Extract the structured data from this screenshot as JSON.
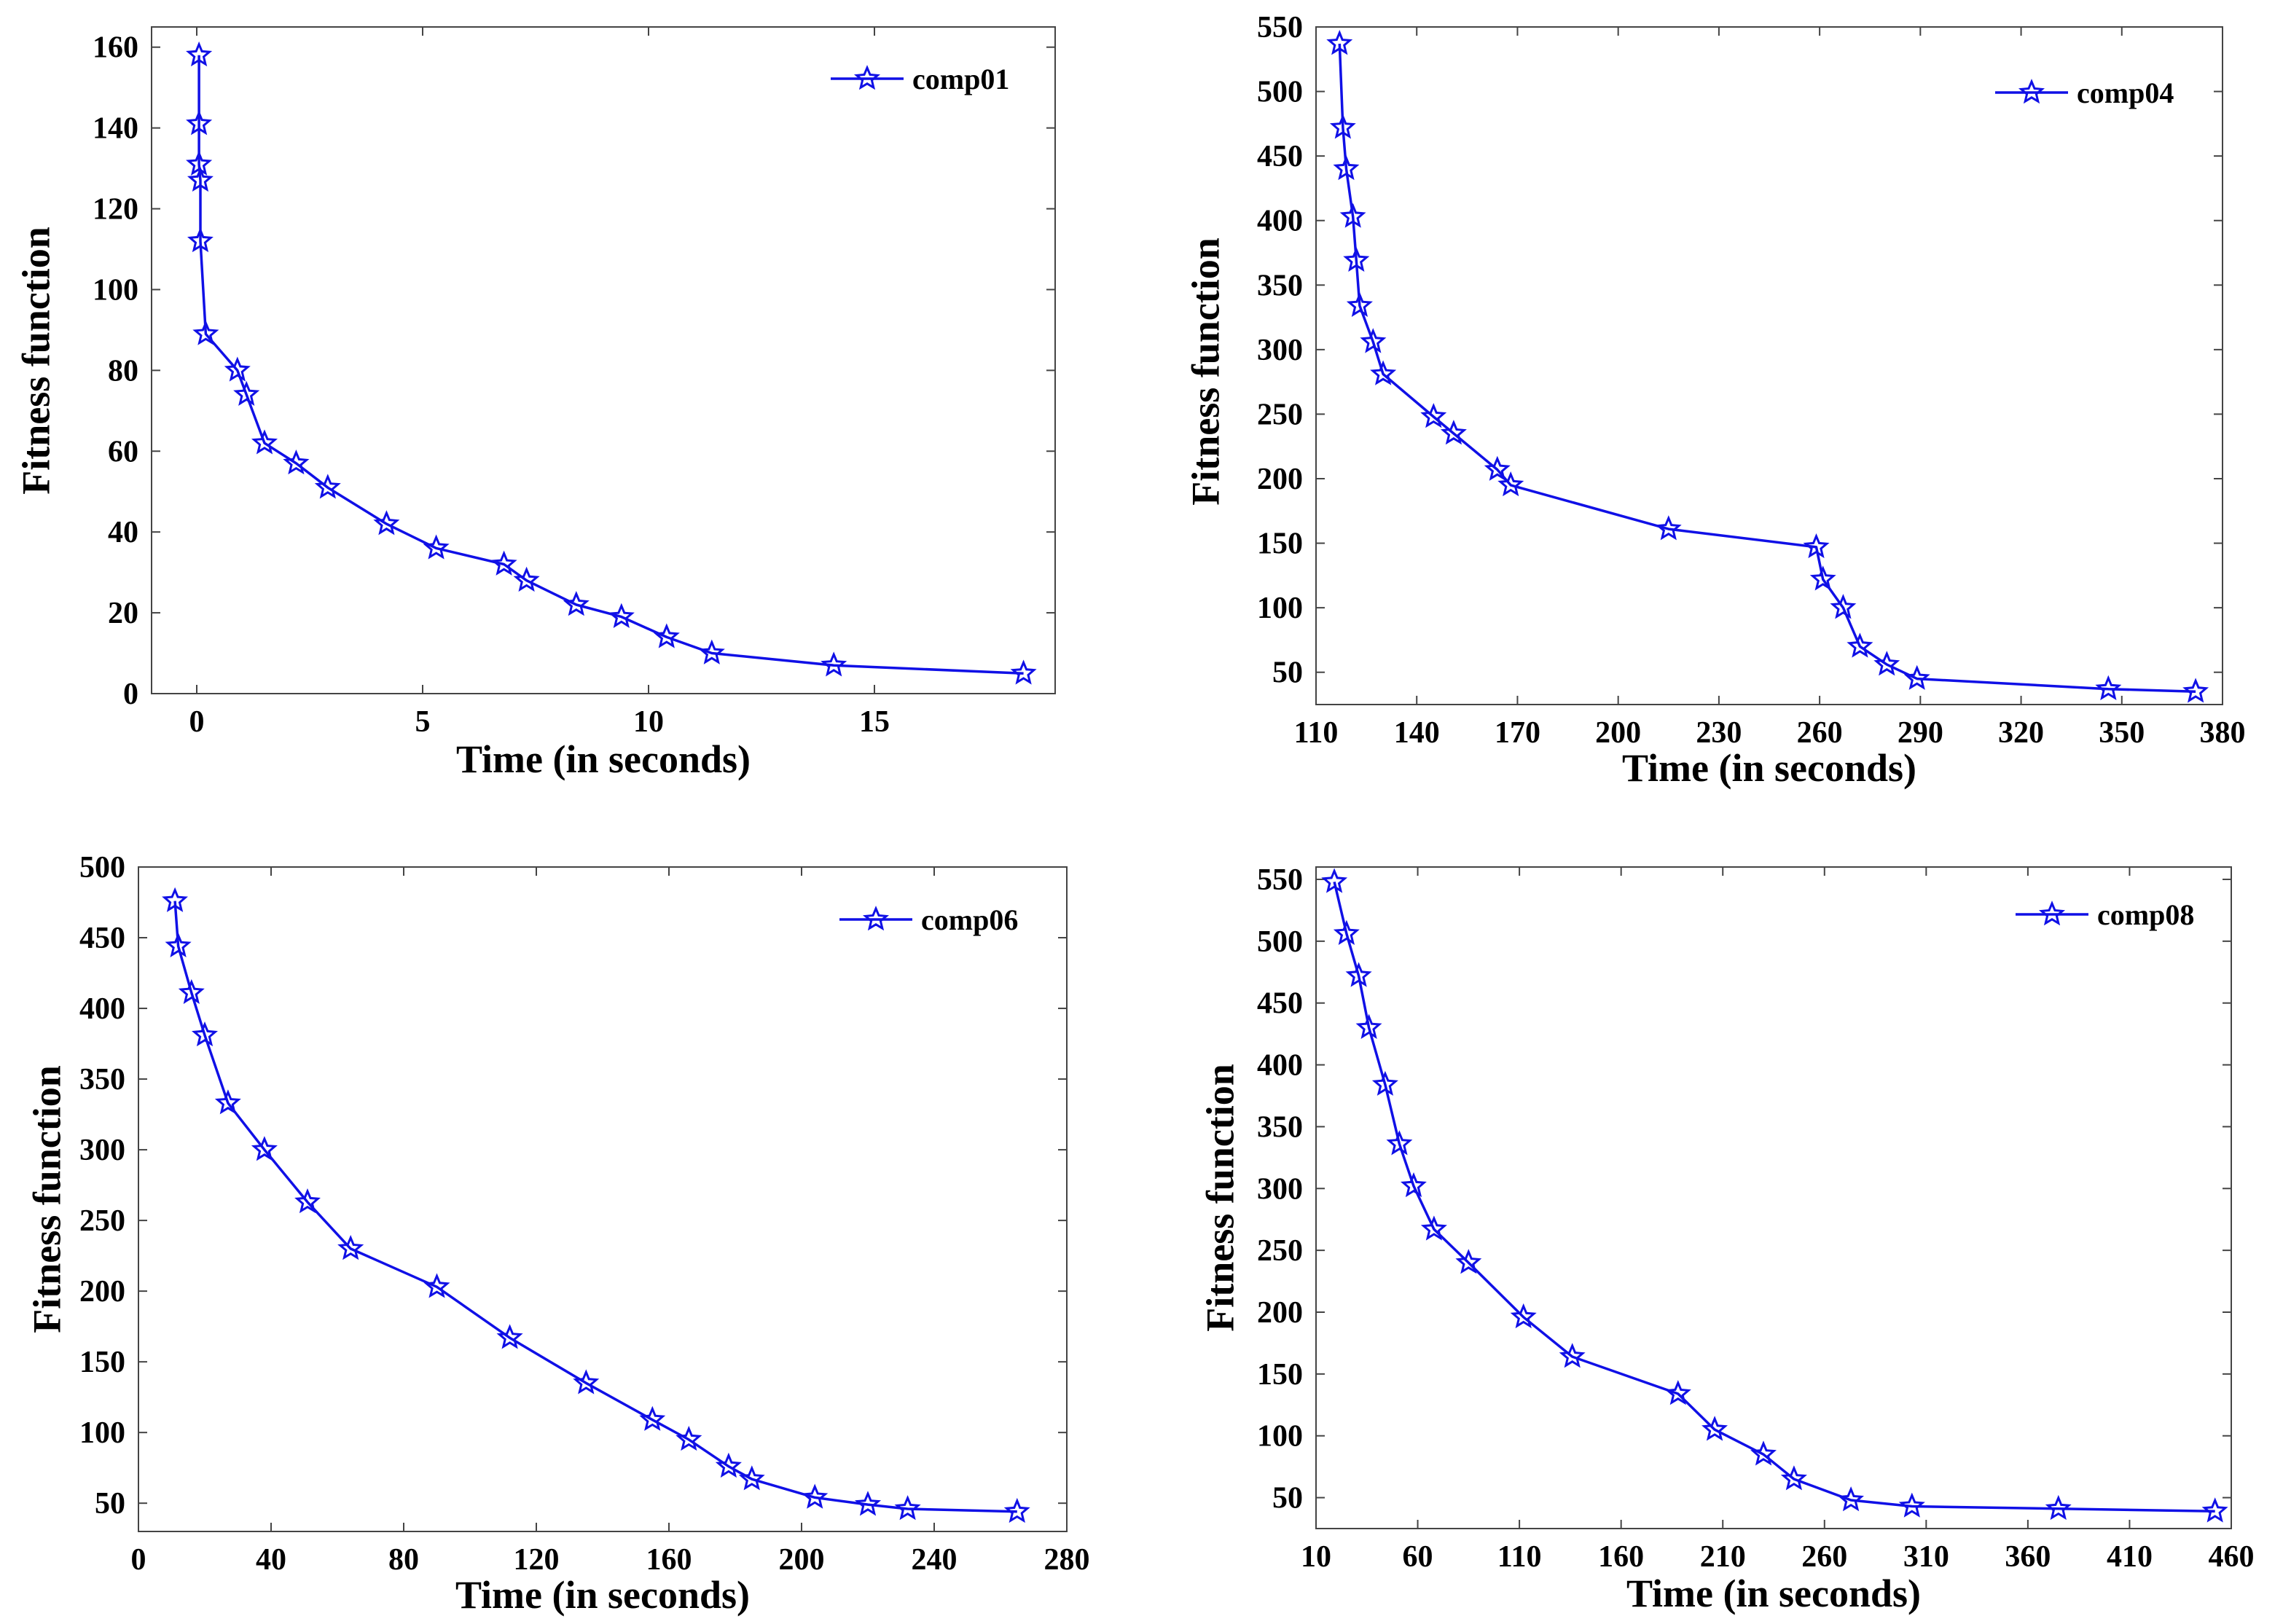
{
  "colors": {
    "series": "#1010e6",
    "axis": "#444444",
    "text": "#000000"
  },
  "chart_data": [
    {
      "type": "line",
      "legend_position": "top-right",
      "xlabel": "Time (in seconds)",
      "ylabel": "Fitness function",
      "xlim": [
        -1,
        19
      ],
      "ylim": [
        0,
        165
      ],
      "xticks": [
        0,
        5,
        10,
        15
      ],
      "yticks": [
        0,
        20,
        40,
        60,
        80,
        100,
        120,
        140,
        160
      ],
      "grid": false,
      "marker": "star",
      "series": [
        {
          "name": "comp01",
          "x": [
            0.05,
            0.05,
            0.05,
            0.08,
            0.08,
            0.2,
            0.9,
            1.1,
            1.5,
            2.2,
            2.9,
            4.2,
            5.3,
            6.8,
            7.3,
            8.4,
            9.4,
            10.4,
            11.4,
            14.1,
            18.3
          ],
          "y": [
            158,
            141,
            131,
            127,
            112,
            89,
            80,
            74,
            62,
            57,
            51,
            42,
            36,
            32,
            28,
            22,
            19,
            14,
            10,
            7,
            5
          ]
        }
      ]
    },
    {
      "type": "line",
      "legend_position": "top-right",
      "xlabel": "Time (in seconds)",
      "ylabel": "Fitness function",
      "xlim": [
        110,
        380
      ],
      "ylim": [
        25,
        550
      ],
      "xticks": [
        110,
        140,
        170,
        200,
        230,
        260,
        290,
        320,
        350,
        380
      ],
      "yticks": [
        50,
        100,
        150,
        200,
        250,
        300,
        350,
        400,
        450,
        500,
        550
      ],
      "grid": false,
      "marker": "star",
      "series": [
        {
          "name": "comp04",
          "x": [
            117,
            118,
            119,
            121,
            122,
            123,
            127,
            130,
            145,
            151,
            164,
            168,
            215,
            259,
            261,
            267,
            272,
            280,
            289,
            346,
            372
          ],
          "y": [
            537,
            472,
            440,
            403,
            369,
            334,
            306,
            281,
            248,
            235,
            207,
            195,
            161,
            147,
            122,
            100,
            70,
            56,
            45,
            37,
            35
          ]
        }
      ]
    },
    {
      "type": "line",
      "legend_position": "top-right",
      "xlabel": "Time (in seconds)",
      "ylabel": "Fitness function",
      "xlim": [
        0,
        280
      ],
      "ylim": [
        30,
        500
      ],
      "xticks": [
        0,
        40,
        80,
        120,
        160,
        200,
        240,
        280
      ],
      "yticks": [
        50,
        100,
        150,
        200,
        250,
        300,
        350,
        400,
        450,
        500
      ],
      "grid": false,
      "marker": "star",
      "series": [
        {
          "name": "comp06",
          "x": [
            11,
            12,
            16,
            20,
            27,
            38,
            51,
            64,
            90,
            112,
            135,
            155,
            166,
            178,
            185,
            204,
            220,
            232,
            265
          ],
          "y": [
            476,
            444,
            411,
            381,
            333,
            300,
            263,
            230,
            203,
            167,
            135,
            109,
            95,
            76,
            67,
            54,
            49,
            46,
            44
          ]
        }
      ]
    },
    {
      "type": "line",
      "legend_position": "top-right",
      "xlabel": "Time (in seconds)",
      "ylabel": "Fitness function",
      "xlim": [
        10,
        460
      ],
      "ylim": [
        25,
        560
      ],
      "xticks": [
        10,
        60,
        110,
        160,
        210,
        260,
        310,
        360,
        410,
        460
      ],
      "yticks": [
        50,
        100,
        150,
        200,
        250,
        300,
        350,
        400,
        450,
        500,
        550
      ],
      "grid": false,
      "marker": "star",
      "series": [
        {
          "name": "comp08",
          "x": [
            19,
            25,
            31,
            36,
            44,
            51,
            58,
            68,
            85,
            112,
            136,
            188,
            206,
            230,
            245,
            273,
            303,
            375,
            452
          ],
          "y": [
            548,
            506,
            472,
            430,
            384,
            336,
            302,
            267,
            240,
            196,
            164,
            134,
            105,
            85,
            65,
            48,
            43,
            41,
            39
          ]
        }
      ]
    }
  ]
}
